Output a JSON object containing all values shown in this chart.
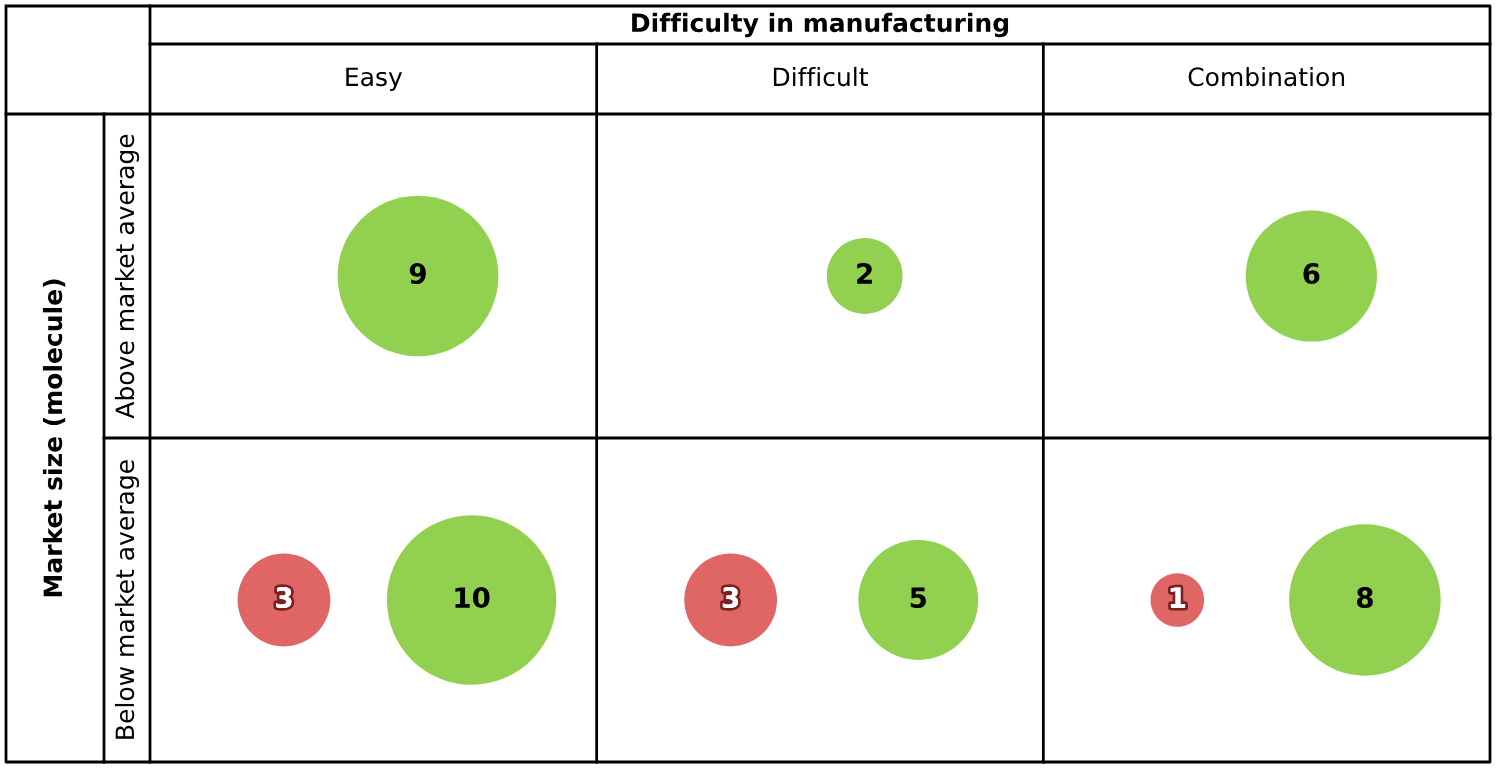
{
  "chart_data": {
    "type": "other",
    "xlabel": "Difficulty in manufacturing",
    "ylabel": "Market size (molecule)",
    "categories": [
      "Easy",
      "Difficult",
      "Combination"
    ],
    "data_labels": true,
    "annotations": [
      "Above market average",
      "Below market average"
    ],
    "series": [
      {
        "color": "#92d050",
        "values": [
          9,
          2,
          6
        ]
      },
      {
        "color": "#92d050",
        "values": [
          10,
          5,
          8
        ]
      },
      {
        "color": "#e06666",
        "values": [
          3,
          3,
          1
        ]
      }
    ]
  }
}
